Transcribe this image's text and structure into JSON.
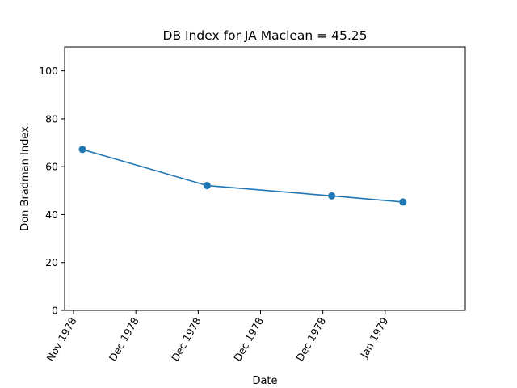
{
  "chart_data": {
    "type": "line",
    "title": "DB Index for JA Maclean = 45.25",
    "xlabel": "Date",
    "ylabel": "Don Bradman Index",
    "ylim": [
      0,
      110
    ],
    "yticks": [
      0,
      20,
      40,
      60,
      80,
      100
    ],
    "xlim": [
      "1978-11-26",
      "1979-01-10"
    ],
    "xticks": [
      {
        "date": "1978-11-27",
        "label": "Nov 1978"
      },
      {
        "date": "1978-12-04",
        "label": "Dec 1978"
      },
      {
        "date": "1978-12-11",
        "label": "Dec 1978"
      },
      {
        "date": "1978-12-18",
        "label": "Dec 1978"
      },
      {
        "date": "1978-12-25",
        "label": "Dec 1978"
      },
      {
        "date": "1979-01-01",
        "label": "Jan 1979"
      }
    ],
    "grid": false,
    "series": [
      {
        "color": "#1f77b4",
        "marker": "circle",
        "points": [
          {
            "x": "1978-11-28",
            "y": 67.2
          },
          {
            "x": "1978-12-12",
            "y": 52.1
          },
          {
            "x": "1978-12-26",
            "y": 47.8
          },
          {
            "x": "1979-01-03",
            "y": 45.25
          }
        ]
      }
    ]
  }
}
